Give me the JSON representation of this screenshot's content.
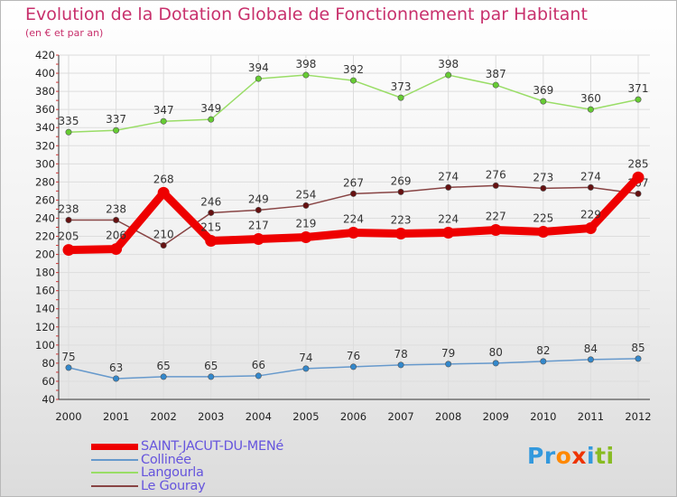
{
  "header": {
    "title": "Evolution de la Dotation Globale de Fonctionnement par Habitant",
    "subtitle": "(en € et par an)"
  },
  "chart_data": {
    "type": "line",
    "title": "Evolution de la Dotation Globale de Fonctionnement par Habitant",
    "subtitle": "(en € et par an)",
    "xlabel": "",
    "ylabel": "",
    "x": [
      "2000",
      "2001",
      "2002",
      "2003",
      "2004",
      "2005",
      "2006",
      "2007",
      "2008",
      "2009",
      "2010",
      "2011",
      "2012"
    ],
    "ylim": [
      40,
      420
    ],
    "yticks": [
      40,
      60,
      80,
      100,
      120,
      140,
      160,
      180,
      200,
      220,
      240,
      260,
      280,
      300,
      320,
      340,
      360,
      380,
      400,
      420
    ],
    "grid": true,
    "legend_position": "bottom-left",
    "series": [
      {
        "name": "Langourla",
        "color": "#99dd66",
        "marker": "#66cc33",
        "values": [
          335,
          337,
          347,
          349,
          394,
          398,
          392,
          373,
          398,
          387,
          369,
          360,
          371
        ]
      },
      {
        "name": "Le Gouray",
        "color": "#884444",
        "marker": "#661111",
        "values": [
          238,
          238,
          210,
          246,
          249,
          254,
          267,
          269,
          274,
          276,
          273,
          274,
          267
        ]
      },
      {
        "name": "Collinée",
        "color": "#6699cc",
        "marker": "#3388cc",
        "values": [
          75,
          63,
          65,
          65,
          66,
          74,
          76,
          78,
          79,
          80,
          82,
          84,
          85
        ]
      },
      {
        "name": "SAINT-JACUT-DU-MENé",
        "color": "#ee0000",
        "marker": "#ee0000",
        "values": [
          205,
          206,
          268,
          215,
          217,
          219,
          224,
          223,
          224,
          227,
          225,
          229,
          285
        ],
        "highlight": true
      }
    ]
  },
  "legend": {
    "items": [
      {
        "label": "SAINT-JACUT-DU-MENé",
        "color": "#ee0000",
        "label_color": "#6655dd"
      },
      {
        "label": "Collinée",
        "color": "#6699cc",
        "label_color": "#6655dd"
      },
      {
        "label": "Langourla",
        "color": "#99dd66",
        "label_color": "#6655dd"
      },
      {
        "label": "Le Gouray",
        "color": "#884444",
        "label_color": "#6655dd"
      }
    ]
  },
  "logo": {
    "letters": [
      "P",
      "r",
      "o",
      "x",
      "i",
      "t",
      "i"
    ],
    "colors": [
      "#3399dd",
      "#3399dd",
      "#ff8800",
      "#ee3300",
      "#3399dd",
      "#88bb22",
      "#88bb22"
    ]
  }
}
